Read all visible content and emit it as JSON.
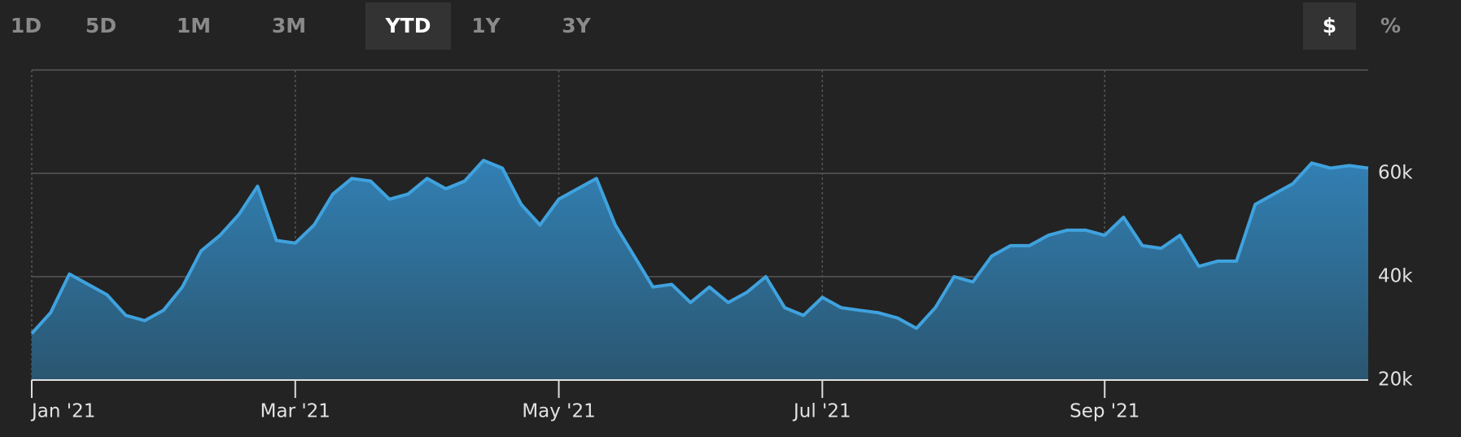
{
  "controls": {
    "ranges": [
      "1D",
      "5D",
      "1M",
      "3M",
      "YTD",
      "1Y",
      "3Y"
    ],
    "active_range": 4,
    "units": [
      "$",
      "%"
    ],
    "active_unit": 0
  },
  "chart_data": {
    "type": "area",
    "categories": [
      "Jan '21",
      null,
      null,
      null,
      null,
      null,
      null,
      null,
      null,
      null,
      null,
      null,
      null,
      null,
      "Mar '21",
      null,
      null,
      null,
      null,
      null,
      null,
      null,
      null,
      null,
      null,
      null,
      null,
      null,
      "May '21",
      null,
      null,
      null,
      null,
      null,
      null,
      null,
      null,
      null,
      null,
      null,
      null,
      null,
      "Jul '21",
      null,
      null,
      null,
      null,
      null,
      null,
      null,
      null,
      null,
      null,
      null,
      null,
      null,
      null,
      "Sep '21",
      null,
      null,
      null,
      null,
      null,
      null,
      null,
      null,
      null,
      null,
      null,
      null,
      null,
      null
    ],
    "values": [
      29000,
      33000,
      40500,
      38500,
      36500,
      32500,
      31500,
      33500,
      38000,
      45000,
      48000,
      52000,
      57500,
      47000,
      46500,
      50000,
      56000,
      59000,
      58500,
      55000,
      56000,
      59000,
      57000,
      58500,
      62500,
      61000,
      54000,
      50000,
      55000,
      57000,
      59000,
      50000,
      44000,
      38000,
      38500,
      35000,
      38000,
      35000,
      37000,
      40000,
      34000,
      32500,
      36000,
      34000,
      33500,
      33000,
      32000,
      30000,
      34000,
      40000,
      39000,
      44000,
      46000,
      46000,
      48000,
      49000,
      49000,
      48000,
      51500,
      46000,
      45500,
      48000,
      42000,
      43000,
      43000,
      54000,
      56000,
      58000,
      62000,
      61000,
      61500,
      61000
    ],
    "color": "#3fa2de",
    "ylim": [
      20000,
      80000
    ],
    "yticks": [
      {
        "value": 20000,
        "label": "20k"
      },
      {
        "value": 40000,
        "label": "40k"
      },
      {
        "value": 60000,
        "label": "60k"
      }
    ],
    "grid": true
  }
}
